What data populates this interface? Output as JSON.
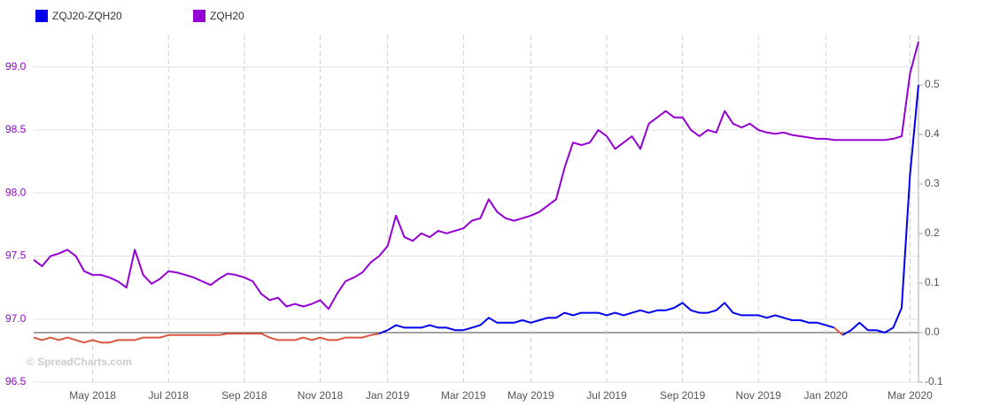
{
  "chart_data": {
    "type": "line",
    "watermark": "© SpreadCharts.com",
    "categories": [
      null,
      null,
      null,
      null,
      null,
      null,
      null,
      "May 2018",
      null,
      null,
      null,
      null,
      null,
      null,
      null,
      null,
      "Jul 2018",
      null,
      null,
      null,
      null,
      null,
      null,
      null,
      null,
      "Sep 2018",
      null,
      null,
      null,
      null,
      null,
      null,
      null,
      null,
      "Nov 2018",
      null,
      null,
      null,
      null,
      null,
      null,
      null,
      "Jan 2019",
      null,
      null,
      null,
      null,
      null,
      null,
      null,
      null,
      "Mar 2019",
      null,
      null,
      null,
      null,
      null,
      null,
      null,
      "May 2019",
      null,
      null,
      null,
      null,
      null,
      null,
      null,
      null,
      "Jul 2019",
      null,
      null,
      null,
      null,
      null,
      null,
      null,
      null,
      "Sep 2019",
      null,
      null,
      null,
      null,
      null,
      null,
      null,
      null,
      "Nov 2019",
      null,
      null,
      null,
      null,
      null,
      null,
      null,
      "Jan 2020",
      null,
      null,
      null,
      null,
      null,
      null,
      null,
      null,
      null,
      "Mar 2020",
      null
    ],
    "series": [
      {
        "name": "ZQJ20-ZQH20",
        "color": "#0000ee",
        "negative_color": "#d9553f",
        "axis": "y2",
        "values": [
          -0.01,
          -0.015,
          -0.01,
          -0.015,
          -0.01,
          -0.015,
          -0.02,
          -0.015,
          -0.02,
          -0.02,
          -0.015,
          -0.015,
          -0.015,
          -0.01,
          -0.01,
          -0.01,
          -0.005,
          -0.005,
          -0.005,
          -0.005,
          -0.005,
          -0.005,
          -0.005,
          -0.002,
          -0.002,
          -0.002,
          -0.002,
          -0.002,
          -0.01,
          -0.015,
          -0.015,
          -0.015,
          -0.01,
          -0.015,
          -0.01,
          -0.015,
          -0.015,
          -0.01,
          -0.01,
          -0.01,
          -0.005,
          -0.002,
          0.005,
          0.015,
          0.01,
          0.01,
          0.01,
          0.015,
          0.01,
          0.01,
          0.005,
          0.005,
          0.01,
          0.015,
          0.03,
          0.02,
          0.02,
          0.02,
          0.025,
          0.02,
          0.025,
          0.03,
          0.03,
          0.04,
          0.035,
          0.04,
          0.04,
          0.04,
          0.035,
          0.04,
          0.035,
          0.04,
          0.045,
          0.04,
          0.045,
          0.045,
          0.05,
          0.06,
          0.045,
          0.04,
          0.04,
          0.045,
          0.06,
          0.04,
          0.035,
          0.035,
          0.035,
          0.03,
          0.035,
          0.03,
          0.025,
          0.025,
          0.02,
          0.02,
          0.015,
          0.01,
          -0.005,
          0.005,
          0.02,
          0.005,
          0.005,
          0.0,
          0.01,
          0.05,
          0.32,
          0.5
        ]
      },
      {
        "name": "ZQH20",
        "color": "#9400d3",
        "axis": "y",
        "values": [
          97.47,
          97.42,
          97.5,
          97.52,
          97.55,
          97.5,
          97.38,
          97.35,
          97.35,
          97.33,
          97.3,
          97.25,
          97.55,
          97.35,
          97.28,
          97.32,
          97.38,
          97.37,
          97.35,
          97.33,
          97.3,
          97.27,
          97.32,
          97.36,
          97.35,
          97.33,
          97.3,
          97.2,
          97.15,
          97.17,
          97.1,
          97.12,
          97.1,
          97.12,
          97.15,
          97.08,
          97.2,
          97.3,
          97.33,
          97.37,
          97.45,
          97.5,
          97.58,
          97.82,
          97.65,
          97.62,
          97.68,
          97.65,
          97.7,
          97.68,
          97.7,
          97.72,
          97.78,
          97.8,
          97.95,
          97.85,
          97.8,
          97.78,
          97.8,
          97.82,
          97.85,
          97.9,
          97.95,
          98.2,
          98.4,
          98.38,
          98.4,
          98.5,
          98.45,
          98.35,
          98.4,
          98.45,
          98.35,
          98.55,
          98.6,
          98.65,
          98.6,
          98.6,
          98.5,
          98.45,
          98.5,
          98.48,
          98.65,
          98.55,
          98.52,
          98.55,
          98.5,
          98.48,
          98.47,
          98.48,
          98.46,
          98.45,
          98.44,
          98.43,
          98.43,
          98.42,
          98.42,
          98.42,
          98.42,
          98.42,
          98.42,
          98.42,
          98.43,
          98.45,
          98.95,
          99.2
        ]
      }
    ],
    "ylim": [
      96.5,
      99.25
    ],
    "yticks": [
      96.5,
      {
        "value": 97,
        "label": "97.0"
      },
      97.5,
      {
        "value": 98,
        "label": "98.0"
      },
      98.5,
      {
        "value": 99,
        "label": "99.0"
      }
    ],
    "y2lim": [
      -0.1,
      0.6
    ],
    "y2ticks": [
      -0.1,
      {
        "value": 0,
        "label": "0.0"
      },
      0.1,
      0.2,
      0.3,
      0.4,
      0.5
    ],
    "grid": true
  }
}
